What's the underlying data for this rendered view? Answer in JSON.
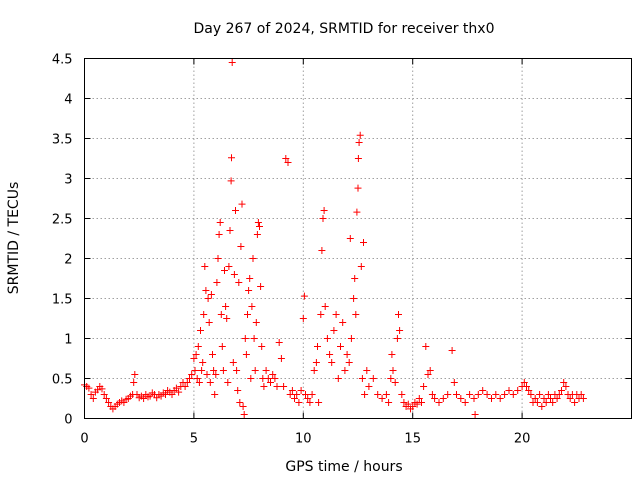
{
  "chart_data": {
    "type": "scatter",
    "title": "Day 267 of 2024, SRMTID for receiver thx0",
    "xlabel": "GPS time / hours",
    "ylabel": "SRMTID / TECUs",
    "xlim": [
      0,
      25
    ],
    "ylim": [
      0,
      4.5
    ],
    "xticks": [
      0,
      5,
      10,
      15,
      20
    ],
    "xtick_labels": [
      "0",
      "5",
      "10",
      "15",
      "20"
    ],
    "yticks": [
      0,
      0.5,
      1,
      1.5,
      2,
      2.5,
      3,
      3.5,
      4,
      4.5
    ],
    "ytick_labels": [
      "0",
      "0.5",
      "1",
      "1.5",
      "2",
      "2.5",
      "3",
      "3.5",
      "4",
      "4.5"
    ],
    "grid": true,
    "marker": "+",
    "color": "#ff0000",
    "series": [
      {
        "name": "SRMTID",
        "points": [
          [
            0.0,
            0.42
          ],
          [
            0.1,
            0.4
          ],
          [
            0.2,
            0.38
          ],
          [
            0.3,
            0.3
          ],
          [
            0.4,
            0.25
          ],
          [
            0.5,
            0.33
          ],
          [
            0.6,
            0.36
          ],
          [
            0.7,
            0.4
          ],
          [
            0.8,
            0.37
          ],
          [
            0.9,
            0.3
          ],
          [
            1.0,
            0.25
          ],
          [
            1.1,
            0.2
          ],
          [
            1.2,
            0.15
          ],
          [
            1.3,
            0.12
          ],
          [
            1.4,
            0.15
          ],
          [
            1.5,
            0.18
          ],
          [
            1.6,
            0.2
          ],
          [
            1.7,
            0.22
          ],
          [
            1.8,
            0.2
          ],
          [
            1.9,
            0.24
          ],
          [
            2.0,
            0.25
          ],
          [
            2.1,
            0.28
          ],
          [
            2.2,
            0.3
          ],
          [
            2.25,
            0.45
          ],
          [
            2.3,
            0.55
          ],
          [
            2.4,
            0.3
          ],
          [
            2.5,
            0.26
          ],
          [
            2.6,
            0.28
          ],
          [
            2.7,
            0.25
          ],
          [
            2.8,
            0.3
          ],
          [
            2.9,
            0.27
          ],
          [
            3.0,
            0.28
          ],
          [
            3.1,
            0.32
          ],
          [
            3.2,
            0.3
          ],
          [
            3.3,
            0.26
          ],
          [
            3.4,
            0.3
          ],
          [
            3.5,
            0.28
          ],
          [
            3.6,
            0.32
          ],
          [
            3.7,
            0.3
          ],
          [
            3.8,
            0.35
          ],
          [
            3.9,
            0.33
          ],
          [
            4.0,
            0.3
          ],
          [
            4.1,
            0.35
          ],
          [
            4.2,
            0.38
          ],
          [
            4.3,
            0.33
          ],
          [
            4.4,
            0.4
          ],
          [
            4.5,
            0.45
          ],
          [
            4.6,
            0.4
          ],
          [
            4.7,
            0.45
          ],
          [
            4.8,
            0.5
          ],
          [
            4.9,
            0.55
          ],
          [
            5.0,
            0.75
          ],
          [
            5.05,
            0.6
          ],
          [
            5.1,
            0.8
          ],
          [
            5.15,
            0.5
          ],
          [
            5.2,
            0.9
          ],
          [
            5.25,
            0.45
          ],
          [
            5.3,
            1.1
          ],
          [
            5.35,
            0.6
          ],
          [
            5.4,
            0.7
          ],
          [
            5.45,
            1.3
          ],
          [
            5.5,
            1.9
          ],
          [
            5.55,
            1.6
          ],
          [
            5.6,
            0.55
          ],
          [
            5.65,
            1.5
          ],
          [
            5.7,
            1.2
          ],
          [
            5.75,
            0.45
          ],
          [
            5.8,
            1.55
          ],
          [
            5.85,
            0.8
          ],
          [
            5.9,
            0.6
          ],
          [
            5.95,
            0.3
          ],
          [
            6.0,
            0.55
          ],
          [
            6.05,
            1.7
          ],
          [
            6.1,
            2.0
          ],
          [
            6.15,
            2.3
          ],
          [
            6.2,
            2.45
          ],
          [
            6.25,
            1.3
          ],
          [
            6.3,
            0.9
          ],
          [
            6.35,
            0.6
          ],
          [
            6.4,
            1.85
          ],
          [
            6.45,
            1.4
          ],
          [
            6.5,
            1.25
          ],
          [
            6.55,
            0.45
          ],
          [
            6.6,
            1.9
          ],
          [
            6.65,
            2.35
          ],
          [
            6.7,
            2.97
          ],
          [
            6.72,
            3.26
          ],
          [
            6.75,
            4.45
          ],
          [
            6.8,
            0.7
          ],
          [
            6.85,
            1.8
          ],
          [
            6.9,
            2.6
          ],
          [
            6.95,
            0.6
          ],
          [
            7.0,
            0.35
          ],
          [
            7.05,
            1.7
          ],
          [
            7.1,
            0.2
          ],
          [
            7.15,
            2.15
          ],
          [
            7.2,
            2.68
          ],
          [
            7.25,
            0.15
          ],
          [
            7.3,
            0.05
          ],
          [
            7.35,
            1.0
          ],
          [
            7.4,
            0.8
          ],
          [
            7.45,
            1.3
          ],
          [
            7.5,
            1.6
          ],
          [
            7.55,
            1.75
          ],
          [
            7.6,
            0.5
          ],
          [
            7.65,
            1.4
          ],
          [
            7.7,
            2.0
          ],
          [
            7.75,
            1.0
          ],
          [
            7.8,
            0.6
          ],
          [
            7.85,
            1.2
          ],
          [
            7.9,
            2.3
          ],
          [
            7.95,
            2.45
          ],
          [
            8.0,
            2.4
          ],
          [
            8.05,
            1.65
          ],
          [
            8.1,
            0.9
          ],
          [
            8.15,
            0.5
          ],
          [
            8.2,
            0.4
          ],
          [
            8.3,
            0.6
          ],
          [
            8.4,
            0.5
          ],
          [
            8.5,
            0.45
          ],
          [
            8.6,
            0.55
          ],
          [
            8.7,
            0.5
          ],
          [
            8.8,
            0.4
          ],
          [
            8.9,
            0.95
          ],
          [
            9.0,
            0.75
          ],
          [
            9.1,
            0.4
          ],
          [
            9.2,
            3.25
          ],
          [
            9.3,
            3.2
          ],
          [
            9.4,
            0.3
          ],
          [
            9.5,
            0.35
          ],
          [
            9.6,
            0.25
          ],
          [
            9.7,
            0.3
          ],
          [
            9.8,
            0.2
          ],
          [
            9.9,
            0.35
          ],
          [
            10.0,
            1.25
          ],
          [
            10.05,
            1.53
          ],
          [
            10.1,
            0.3
          ],
          [
            10.2,
            0.25
          ],
          [
            10.3,
            0.2
          ],
          [
            10.4,
            0.3
          ],
          [
            10.5,
            0.6
          ],
          [
            10.6,
            0.7
          ],
          [
            10.65,
            0.9
          ],
          [
            10.7,
            0.2
          ],
          [
            10.8,
            1.3
          ],
          [
            10.85,
            2.1
          ],
          [
            10.9,
            2.5
          ],
          [
            10.95,
            2.6
          ],
          [
            11.0,
            1.4
          ],
          [
            11.1,
            1.0
          ],
          [
            11.2,
            0.8
          ],
          [
            11.3,
            0.7
          ],
          [
            11.4,
            1.1
          ],
          [
            11.5,
            1.3
          ],
          [
            11.6,
            0.5
          ],
          [
            11.7,
            0.9
          ],
          [
            11.8,
            1.2
          ],
          [
            11.9,
            0.6
          ],
          [
            12.0,
            0.8
          ],
          [
            12.1,
            0.7
          ],
          [
            12.15,
            2.25
          ],
          [
            12.2,
            1.0
          ],
          [
            12.3,
            1.5
          ],
          [
            12.35,
            1.75
          ],
          [
            12.4,
            1.3
          ],
          [
            12.45,
            2.58
          ],
          [
            12.5,
            2.88
          ],
          [
            12.52,
            3.25
          ],
          [
            12.55,
            3.45
          ],
          [
            12.6,
            3.54
          ],
          [
            12.65,
            1.9
          ],
          [
            12.7,
            0.5
          ],
          [
            12.75,
            2.2
          ],
          [
            12.8,
            0.3
          ],
          [
            12.9,
            0.6
          ],
          [
            13.0,
            0.4
          ],
          [
            13.2,
            0.5
          ],
          [
            13.4,
            0.3
          ],
          [
            13.6,
            0.25
          ],
          [
            13.8,
            0.3
          ],
          [
            13.9,
            0.2
          ],
          [
            14.0,
            0.5
          ],
          [
            14.05,
            0.8
          ],
          [
            14.1,
            0.6
          ],
          [
            14.2,
            0.45
          ],
          [
            14.3,
            1.0
          ],
          [
            14.35,
            1.3
          ],
          [
            14.4,
            1.1
          ],
          [
            14.5,
            0.3
          ],
          [
            14.6,
            0.2
          ],
          [
            14.7,
            0.15
          ],
          [
            14.8,
            0.18
          ],
          [
            14.9,
            0.12
          ],
          [
            15.0,
            0.15
          ],
          [
            15.1,
            0.2
          ],
          [
            15.2,
            0.18
          ],
          [
            15.3,
            0.25
          ],
          [
            15.4,
            0.2
          ],
          [
            15.5,
            0.4
          ],
          [
            15.6,
            0.9
          ],
          [
            15.7,
            0.55
          ],
          [
            15.8,
            0.6
          ],
          [
            15.9,
            0.3
          ],
          [
            16.0,
            0.25
          ],
          [
            16.2,
            0.2
          ],
          [
            16.4,
            0.25
          ],
          [
            16.6,
            0.3
          ],
          [
            16.8,
            0.85
          ],
          [
            16.9,
            0.45
          ],
          [
            17.0,
            0.3
          ],
          [
            17.2,
            0.25
          ],
          [
            17.4,
            0.2
          ],
          [
            17.6,
            0.3
          ],
          [
            17.8,
            0.25
          ],
          [
            17.85,
            0.05
          ],
          [
            18.0,
            0.3
          ],
          [
            18.2,
            0.35
          ],
          [
            18.4,
            0.3
          ],
          [
            18.6,
            0.25
          ],
          [
            18.8,
            0.3
          ],
          [
            19.0,
            0.25
          ],
          [
            19.2,
            0.3
          ],
          [
            19.4,
            0.35
          ],
          [
            19.6,
            0.3
          ],
          [
            19.8,
            0.35
          ],
          [
            20.0,
            0.4
          ],
          [
            20.1,
            0.45
          ],
          [
            20.2,
            0.4
          ],
          [
            20.3,
            0.35
          ],
          [
            20.4,
            0.3
          ],
          [
            20.5,
            0.2
          ],
          [
            20.6,
            0.25
          ],
          [
            20.7,
            0.2
          ],
          [
            20.8,
            0.3
          ],
          [
            20.9,
            0.15
          ],
          [
            21.0,
            0.25
          ],
          [
            21.1,
            0.2
          ],
          [
            21.2,
            0.3
          ],
          [
            21.3,
            0.25
          ],
          [
            21.4,
            0.2
          ],
          [
            21.5,
            0.3
          ],
          [
            21.6,
            0.25
          ],
          [
            21.7,
            0.3
          ],
          [
            21.8,
            0.35
          ],
          [
            21.9,
            0.45
          ],
          [
            22.0,
            0.4
          ],
          [
            22.1,
            0.3
          ],
          [
            22.2,
            0.25
          ],
          [
            22.3,
            0.3
          ],
          [
            22.4,
            0.2
          ],
          [
            22.5,
            0.3
          ],
          [
            22.6,
            0.25
          ],
          [
            22.7,
            0.3
          ],
          [
            22.8,
            0.25
          ]
        ]
      }
    ]
  }
}
